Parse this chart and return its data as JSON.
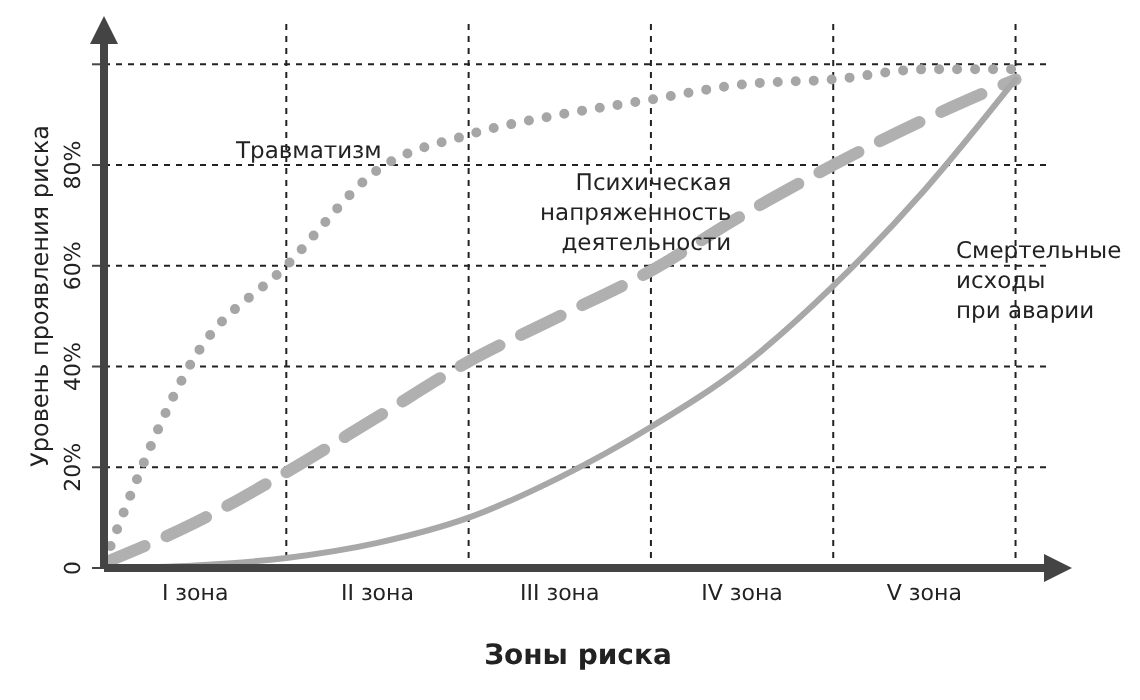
{
  "chart_data": {
    "type": "line",
    "xlabel": "Зоны  риска",
    "ylabel": "Уровень  проявления  риска",
    "categories": [
      null,
      "I  зона",
      null,
      "II  зона",
      null,
      "III  зона",
      null,
      "IV  зона",
      null,
      "V зона",
      null
    ],
    "ylim": [
      0,
      108
    ],
    "yticks": [
      0,
      {
        "value": 20,
        "label": "20%"
      },
      {
        "value": 40,
        "label": "40%"
      },
      {
        "value": 60,
        "label": "60%"
      },
      {
        "value": 80,
        "label": "80%"
      },
      {
        "value": 100,
        "label": null
      }
    ],
    "grid": true,
    "marker": "none",
    "series": [
      {
        "name": "Травматизм",
        "color": "#a6a6a6",
        "line_style": "dotted",
        "values": [
          1,
          42,
          60,
          79,
          86,
          90,
          93,
          96,
          97,
          99,
          99
        ]
      },
      {
        "name": "Психическая\nнапряженность\nдеятельности",
        "color": "#b0b0b0",
        "line_style": "dashed",
        "values": [
          1,
          9,
          19,
          30,
          41,
          50,
          59,
          70,
          80,
          89,
          97
        ]
      },
      {
        "name": "Смертельные\nисходы\nпри аварии",
        "color": "#a8a8a8",
        "line_style": "solid",
        "values": [
          0,
          0.5,
          2,
          5,
          10,
          18,
          28,
          40,
          56,
          75,
          97
        ]
      }
    ]
  }
}
